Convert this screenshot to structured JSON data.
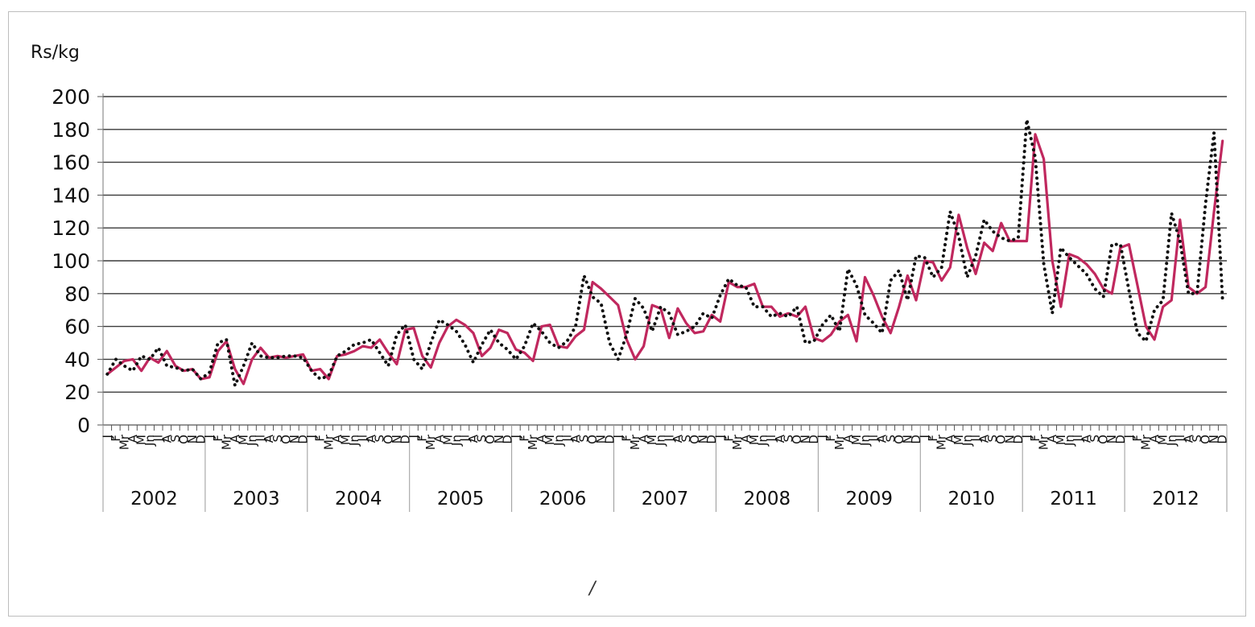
{
  "chart_data": {
    "type": "line",
    "ylabel": "Rs/kg",
    "ylim": [
      0,
      200
    ],
    "yticks": [
      0,
      20,
      40,
      60,
      80,
      100,
      120,
      140,
      160,
      180,
      200
    ],
    "grid": "horizontal",
    "years": [
      "2002",
      "2003",
      "2004",
      "2005",
      "2006",
      "2007",
      "2008",
      "2009",
      "2010",
      "2011",
      "2012"
    ],
    "month_labels": [
      "J",
      "F",
      "Mr",
      "A",
      "M",
      "Jn",
      "Jl",
      "A",
      "S",
      "O",
      "N",
      "D"
    ],
    "series": [
      {
        "style": "solid",
        "color": "#c0285e",
        "values": [
          31,
          35,
          39,
          40,
          33,
          41,
          38,
          45,
          36,
          33,
          34,
          28,
          29,
          45,
          51,
          34,
          25,
          40,
          47,
          41,
          42,
          41,
          42,
          43,
          33,
          34,
          28,
          42,
          43,
          45,
          48,
          47,
          52,
          44,
          37,
          58,
          59,
          42,
          35,
          50,
          60,
          64,
          61,
          56,
          42,
          47,
          58,
          56,
          46,
          44,
          39,
          60,
          61,
          48,
          47,
          54,
          58,
          87,
          83,
          78,
          73,
          52,
          40,
          48,
          73,
          71,
          53,
          71,
          62,
          56,
          57,
          67,
          63,
          87,
          84,
          84,
          86,
          72,
          72,
          66,
          68,
          66,
          72,
          53,
          51,
          55,
          63,
          67,
          51,
          90,
          79,
          66,
          56,
          72,
          91,
          76,
          100,
          99,
          88,
          96,
          128,
          108,
          92,
          111,
          106,
          123,
          112,
          112,
          112,
          177,
          162,
          100,
          72,
          104,
          102,
          98,
          92,
          83,
          80,
          108,
          110,
          85,
          60,
          52,
          72,
          76,
          125,
          84,
          80,
          84,
          130,
          173
        ]
      },
      {
        "style": "dotted",
        "color": "#111111",
        "values": [
          31,
          40,
          36,
          33,
          42,
          40,
          47,
          36,
          35,
          33,
          34,
          28,
          32,
          50,
          52,
          24,
          36,
          50,
          42,
          41,
          41,
          42,
          42,
          41,
          33,
          28,
          30,
          42,
          45,
          49,
          50,
          52,
          44,
          36,
          55,
          61,
          40,
          34,
          50,
          64,
          61,
          57,
          49,
          38,
          49,
          58,
          50,
          46,
          40,
          48,
          62,
          57,
          50,
          47,
          51,
          60,
          91,
          78,
          74,
          50,
          40,
          55,
          77,
          71,
          57,
          72,
          68,
          55,
          57,
          60,
          68,
          65,
          79,
          89,
          85,
          84,
          72,
          72,
          66,
          68,
          66,
          72,
          50,
          51,
          61,
          67,
          57,
          95,
          85,
          67,
          62,
          56,
          88,
          94,
          76,
          103,
          102,
          90,
          96,
          130,
          115,
          90,
          103,
          125,
          118,
          114,
          112,
          114,
          186,
          163,
          98,
          68,
          108,
          102,
          97,
          92,
          83,
          78,
          110,
          110,
          82,
          56,
          51,
          70,
          76,
          129,
          112,
          80,
          80,
          135,
          178,
          76
        ]
      }
    ]
  }
}
